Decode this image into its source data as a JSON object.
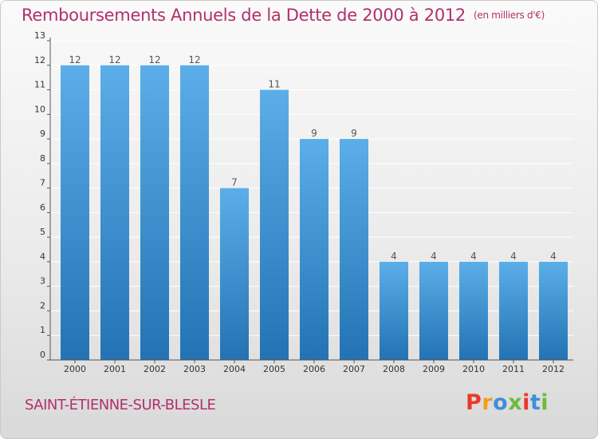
{
  "header": {
    "title": "Remboursements Annuels de la Dette de 2000 à 2012",
    "unit": "(en milliers d'€)"
  },
  "footer": {
    "commune": "SAINT-ÉTIENNE-SUR-BLESLE",
    "logo_text": "Proxiti"
  },
  "colors": {
    "title": "#b2306a",
    "bar_top": "#5baee8",
    "bar_bottom": "#2373b4",
    "logo": [
      "#e8392a",
      "#f39c1f",
      "#3d8fd9",
      "#6cbc3a",
      "#e8392a",
      "#3d8fd9",
      "#6cbc3a"
    ]
  },
  "chart_data": {
    "type": "bar",
    "title": "Remboursements Annuels de la Dette de 2000 à 2012",
    "xlabel": "",
    "ylabel": "",
    "ylim": [
      0,
      13
    ],
    "yticks": [
      0,
      1,
      2,
      3,
      4,
      5,
      6,
      7,
      8,
      9,
      10,
      11,
      12,
      13
    ],
    "grid": true,
    "categories": [
      "2000",
      "2001",
      "2002",
      "2003",
      "2004",
      "2005",
      "2006",
      "2007",
      "2008",
      "2009",
      "2010",
      "2011",
      "2012"
    ],
    "values": [
      12,
      12,
      12,
      12,
      7,
      11,
      9,
      9,
      4,
      4,
      4,
      4,
      4
    ]
  }
}
